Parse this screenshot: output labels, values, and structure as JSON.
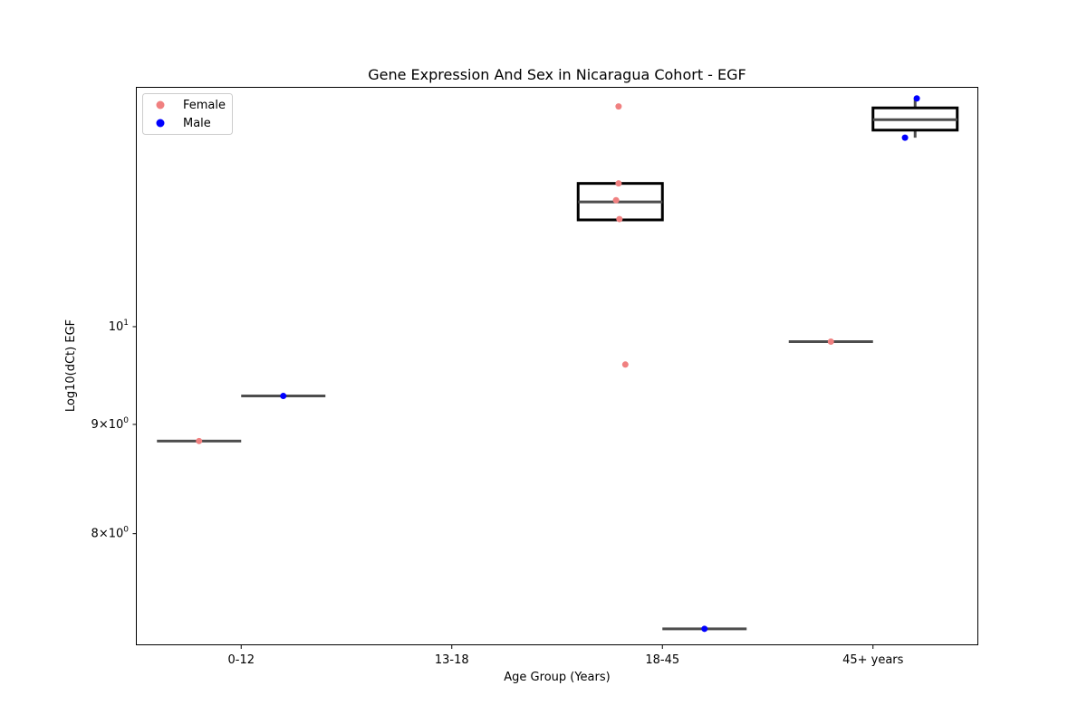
{
  "chart_data": {
    "type": "box",
    "title": "Gene Expression And Sex in Nicaragua Cohort - EGF",
    "xlabel": "Age Group (Years)",
    "ylabel": "Log10(dCt) EGF",
    "yscale": "log",
    "ylim": [
      7.1,
      12.95
    ],
    "categories": [
      "0-12",
      "13-18",
      "18-45",
      "45+ years"
    ],
    "yticks": [
      {
        "value": 8,
        "mantissa": "8",
        "base": "10",
        "exp": "0"
      },
      {
        "value": 9,
        "mantissa": "9",
        "base": "10",
        "exp": "0"
      },
      {
        "value": 10,
        "mantissa": "",
        "base": "10",
        "exp": "1"
      }
    ],
    "legend": {
      "position": "upper-left",
      "entries": [
        {
          "name": "Female",
          "color": "#f08080"
        },
        {
          "name": "Male",
          "color": "#0000ff"
        }
      ]
    },
    "series": [
      {
        "name": "Female",
        "color": "#f08080",
        "boxes": [
          {
            "category": "0-12",
            "q1": 8.84,
            "median": 8.84,
            "q3": 8.84,
            "whisker_low": 8.84,
            "whisker_high": 8.84
          },
          {
            "category": "18-45",
            "q1": 11.22,
            "median": 11.44,
            "q3": 11.67,
            "whisker_low": 11.22,
            "whisker_high": 11.67
          },
          {
            "category": "45+ years",
            "q1": 9.84,
            "median": 9.84,
            "q3": 9.84,
            "whisker_low": 9.84,
            "whisker_high": 9.84
          }
        ],
        "points": [
          {
            "category": "0-12",
            "y": 8.84,
            "jitter": 0.0
          },
          {
            "category": "18-45",
            "y": 12.68,
            "jitter": -0.02
          },
          {
            "category": "18-45",
            "y": 11.67,
            "jitter": -0.02
          },
          {
            "category": "18-45",
            "y": 11.46,
            "jitter": -0.05
          },
          {
            "category": "18-45",
            "y": 11.23,
            "jitter": -0.01
          },
          {
            "category": "18-45",
            "y": 9.6,
            "jitter": 0.06
          },
          {
            "category": "45+ years",
            "y": 9.84,
            "jitter": 0.0
          }
        ]
      },
      {
        "name": "Male",
        "color": "#0000ff",
        "boxes": [
          {
            "category": "0-12",
            "q1": 9.28,
            "median": 9.28,
            "q3": 9.28,
            "whisker_low": 9.28,
            "whisker_high": 9.28
          },
          {
            "category": "18-45",
            "q1": 7.22,
            "median": 7.22,
            "q3": 7.22,
            "whisker_low": 7.22,
            "whisker_high": 7.22
          },
          {
            "category": "45+ years",
            "q1": 12.36,
            "median": 12.5,
            "q3": 12.66,
            "whisker_low": 12.26,
            "whisker_high": 12.79
          }
        ],
        "points": [
          {
            "category": "0-12",
            "y": 9.28,
            "jitter": 0.0
          },
          {
            "category": "18-45",
            "y": 7.22,
            "jitter": 0.0
          },
          {
            "category": "45+ years",
            "y": 12.79,
            "jitter": 0.02
          },
          {
            "category": "45+ years",
            "y": 12.26,
            "jitter": -0.12
          }
        ]
      }
    ]
  }
}
